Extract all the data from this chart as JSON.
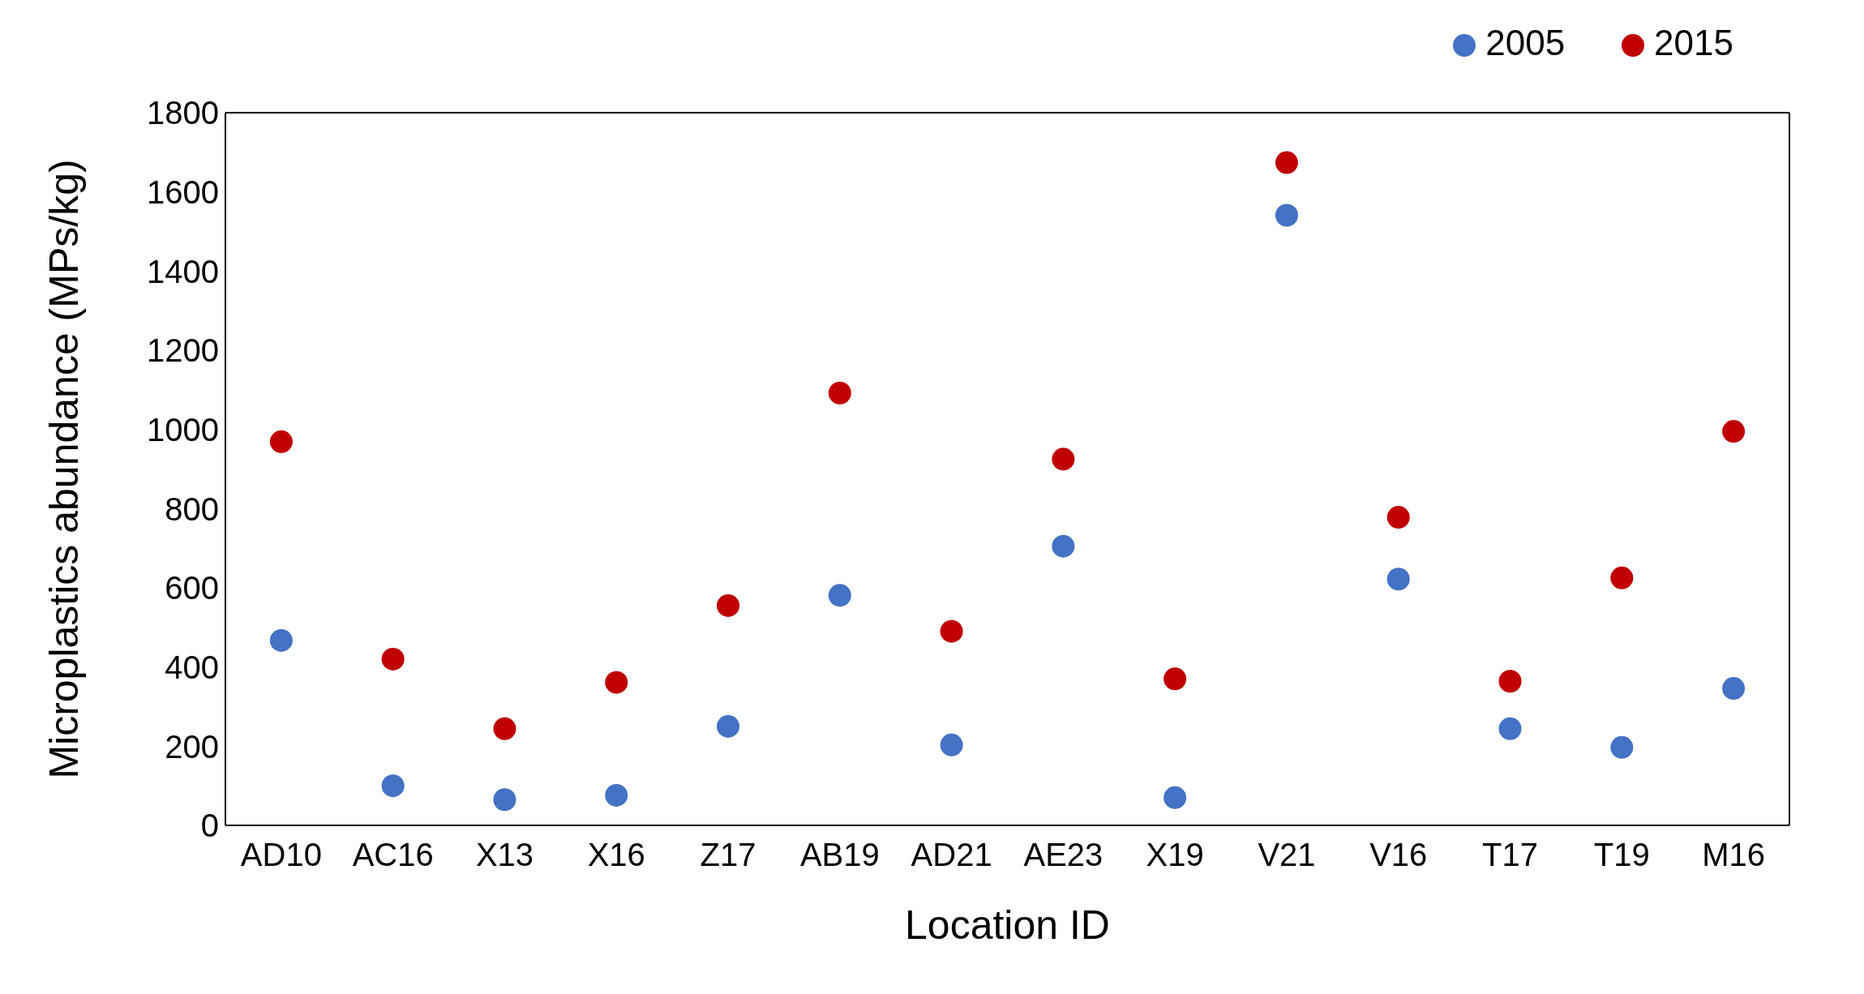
{
  "chart_data": {
    "type": "scatter",
    "xlabel": "Location ID",
    "ylabel": "Microplastics abundance (MPs/kg)",
    "categories": [
      "AD10",
      "AC16",
      "X13",
      "X16",
      "Z17",
      "AB19",
      "AD21",
      "AE23",
      "X19",
      "V21",
      "V16",
      "T17",
      "T19",
      "M16"
    ],
    "series": [
      {
        "name": "2005",
        "color": "#4472c4",
        "values": [
          467,
          100,
          65,
          76,
          250,
          581,
          203,
          705,
          70,
          1541,
          622,
          244,
          197,
          346
        ]
      },
      {
        "name": "2015",
        "color": "#c00000",
        "values": [
          969,
          420,
          244,
          361,
          555,
          1092,
          490,
          925,
          370,
          1674,
          778,
          364,
          625,
          995
        ]
      }
    ],
    "ylim": [
      0,
      1800
    ],
    "yticks": [
      0,
      200,
      400,
      600,
      800,
      1000,
      1200,
      1400,
      1600,
      1800
    ],
    "legend": "top right",
    "marker": "circle"
  }
}
